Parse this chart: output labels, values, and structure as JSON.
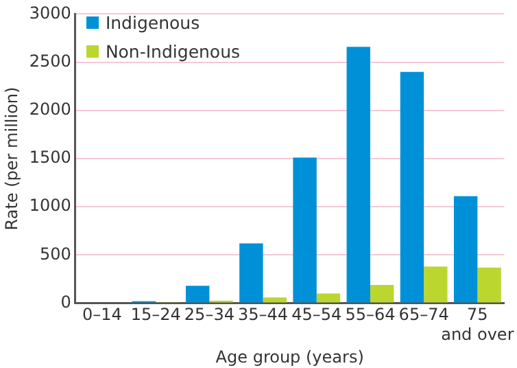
{
  "chart_data": {
    "type": "bar",
    "xlabel": "Age group (years)",
    "ylabel": "Rate (per million)",
    "categories": [
      "0–14",
      "15–24",
      "25–34",
      "35–44",
      "45–54",
      "55–64",
      "65–74",
      "75 and over"
    ],
    "series": [
      {
        "name": "Indigenous",
        "color": "#0090d8",
        "values": [
          0,
          20,
          180,
          620,
          1510,
          2660,
          2400,
          1110
        ]
      },
      {
        "name": "Non-Indigenous",
        "color": "#bcd630",
        "values": [
          0,
          10,
          25,
          60,
          100,
          190,
          380,
          370
        ]
      }
    ],
    "ylim": [
      0,
      3000
    ],
    "yticks": [
      0,
      500,
      1000,
      1500,
      2000,
      2500,
      3000
    ],
    "grid": "y",
    "legend": "top left"
  }
}
